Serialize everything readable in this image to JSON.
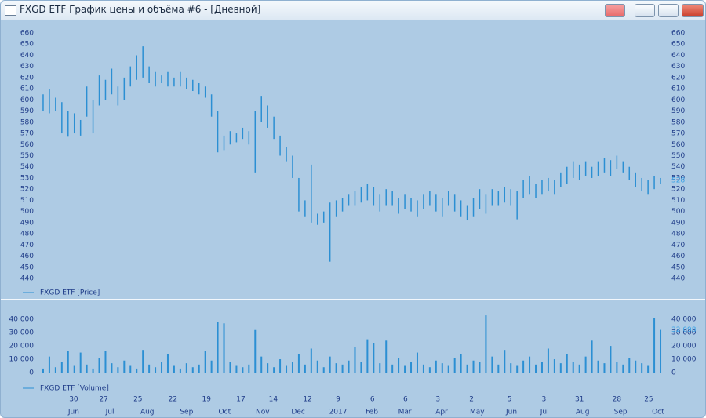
{
  "window_title": "FXGD ETF График цены и объёма #6 - [Дневной]",
  "chart_data": [
    {
      "type": "hlbar",
      "legend": "FXGD ETF [Price]",
      "color": "#2b8fd3",
      "high": [
        605,
        610,
        602,
        598,
        590,
        588,
        582,
        612,
        600,
        622,
        618,
        628,
        612,
        620,
        630,
        640,
        648,
        630,
        625,
        622,
        625,
        620,
        625,
        620,
        618,
        615,
        612,
        605,
        590,
        568,
        572,
        570,
        575,
        572,
        590,
        603,
        595,
        585,
        568,
        558,
        550,
        530,
        510,
        542,
        498,
        500,
        508,
        510,
        512,
        515,
        518,
        522,
        525,
        522,
        515,
        520,
        518,
        512,
        515,
        512,
        510,
        515,
        518,
        515,
        512,
        518,
        515,
        510,
        505,
        512,
        520,
        515,
        520,
        518,
        522,
        520,
        518,
        528,
        532,
        525,
        528,
        530,
        528,
        535,
        540,
        545,
        542,
        545,
        540,
        545,
        548,
        546,
        550,
        545,
        540,
        535,
        530,
        528,
        532,
        530
      ],
      "low": [
        590,
        588,
        590,
        570,
        567,
        570,
        568,
        585,
        570,
        595,
        600,
        605,
        595,
        600,
        612,
        618,
        620,
        615,
        612,
        615,
        612,
        612,
        612,
        610,
        608,
        605,
        602,
        585,
        553,
        555,
        560,
        562,
        565,
        560,
        535,
        580,
        575,
        565,
        550,
        545,
        530,
        500,
        495,
        490,
        488,
        490,
        455,
        495,
        500,
        505,
        505,
        508,
        510,
        505,
        500,
        505,
        505,
        498,
        502,
        500,
        495,
        502,
        505,
        500,
        495,
        505,
        500,
        495,
        492,
        495,
        502,
        498,
        505,
        505,
        508,
        505,
        493,
        512,
        515,
        512,
        515,
        518,
        515,
        522,
        525,
        530,
        528,
        532,
        530,
        532,
        535,
        532,
        538,
        535,
        528,
        522,
        518,
        515,
        520,
        525
      ],
      "last": 528,
      "xlim": [
        0,
        100
      ],
      "ylim": [
        440,
        660
      ],
      "yticks": [
        440,
        450,
        460,
        470,
        480,
        490,
        500,
        510,
        520,
        530,
        540,
        550,
        560,
        570,
        580,
        590,
        600,
        610,
        620,
        630,
        640,
        650,
        660
      ]
    },
    {
      "type": "bar",
      "legend": "FXGD ETF [Volume]",
      "color": "#2b8fd3",
      "values": [
        3000,
        12000,
        4000,
        8000,
        16000,
        5000,
        15000,
        6000,
        3000,
        11000,
        16000,
        7000,
        4000,
        9000,
        5000,
        3000,
        17000,
        6000,
        4000,
        8000,
        14000,
        5000,
        3000,
        7000,
        4000,
        6000,
        16000,
        9000,
        38000,
        37000,
        8000,
        5000,
        4000,
        6000,
        32000,
        12000,
        7000,
        4000,
        10000,
        5000,
        8000,
        14000,
        6000,
        18000,
        9000,
        4000,
        12000,
        7000,
        6000,
        9000,
        19000,
        8000,
        25000,
        22000,
        7000,
        24000,
        6000,
        11000,
        5000,
        8000,
        15000,
        6000,
        4000,
        9000,
        7000,
        5000,
        11000,
        14000,
        6000,
        9000,
        8000,
        43000,
        12000,
        6000,
        17000,
        7000,
        5000,
        9000,
        12000,
        6000,
        8000,
        18000,
        10000,
        7000,
        14000,
        8000,
        6000,
        12000,
        24000,
        9000,
        7000,
        20000,
        8000,
        6000,
        11000,
        9000,
        7000,
        5000,
        41000,
        32098
      ],
      "last": {
        "value": 32098,
        "label": "32 098"
      },
      "xlim": [
        0,
        100
      ],
      "ylim": [
        0,
        46000
      ],
      "yticks": [
        0,
        {
          "value": 10000,
          "label": "10 000"
        },
        {
          "value": 20000,
          "label": "20 000"
        },
        {
          "value": 30000,
          "label": "30 000"
        },
        {
          "value": 40000,
          "label": "40 000"
        }
      ],
      "xticks_day": [
        {
          "value": 5.4,
          "label": "30"
        },
        {
          "value": 10.2,
          "label": "27"
        },
        {
          "value": 15.7,
          "label": "25"
        },
        {
          "value": 21.3,
          "label": "22"
        },
        {
          "value": 26.7,
          "label": "19"
        },
        {
          "value": 32.2,
          "label": "17"
        },
        {
          "value": 37.4,
          "label": "14"
        },
        {
          "value": 42.9,
          "label": "12"
        },
        {
          "value": 47.8,
          "label": "9"
        },
        {
          "value": 53.3,
          "label": "6"
        },
        {
          "value": 58.6,
          "label": "6"
        },
        {
          "value": 63.8,
          "label": "3"
        },
        {
          "value": 69.2,
          "label": "2"
        },
        {
          "value": 75.3,
          "label": "5"
        },
        {
          "value": 80.8,
          "label": "3"
        },
        {
          "value": 86.5,
          "label": "31"
        },
        {
          "value": 92.5,
          "label": "28"
        },
        {
          "value": 97.6,
          "label": "25"
        }
      ],
      "xticks_month": [
        {
          "value": 5.4,
          "label": "Jun"
        },
        {
          "value": 11.2,
          "label": "Jul"
        },
        {
          "value": 17.2,
          "label": "Aug"
        },
        {
          "value": 23.5,
          "label": "Sep"
        },
        {
          "value": 29.6,
          "label": "Oct"
        },
        {
          "value": 35.7,
          "label": "Nov"
        },
        {
          "value": 41.4,
          "label": "Dec"
        },
        {
          "value": 47.8,
          "label": "2017"
        },
        {
          "value": 53.2,
          "label": "Feb"
        },
        {
          "value": 58.5,
          "label": "Mar"
        },
        {
          "value": 64.4,
          "label": "Apr"
        },
        {
          "value": 70.1,
          "label": "May"
        },
        {
          "value": 75.6,
          "label": "Jun"
        },
        {
          "value": 80.9,
          "label": "Jul"
        },
        {
          "value": 87.0,
          "label": "Aug"
        },
        {
          "value": 93.1,
          "label": "Sep"
        },
        {
          "value": 99.1,
          "label": "Oct"
        }
      ]
    }
  ]
}
